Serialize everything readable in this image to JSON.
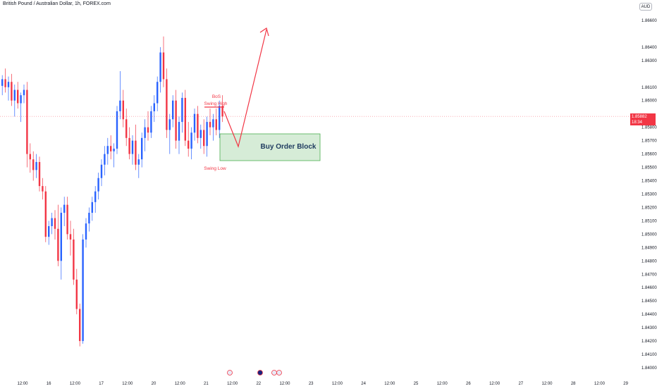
{
  "header": {
    "title": "British Pound / Australian Dollar, 1h, FOREX.com",
    "currency": "AUD"
  },
  "price_tag": {
    "price": "1.85882",
    "countdown": "18:34"
  },
  "annotations": {
    "bos": "BoS",
    "swing_high": "Swing High",
    "swing_low": "Swing Low",
    "order_block": "Buy Order Block"
  },
  "colors": {
    "up": "#2962ff",
    "down": "#f23645",
    "arrow": "#f23645",
    "order_block_fill": "#c8e6c9",
    "order_block_border": "#4caf50"
  },
  "chart_data": {
    "type": "candlestick",
    "y_ticks": [
      "1.86600",
      "1.86400",
      "1.86300",
      "1.86100",
      "1.86000",
      "1.85800",
      "1.85700",
      "1.85600",
      "1.85500",
      "1.85400",
      "1.85300",
      "1.85200",
      "1.85100",
      "1.85000",
      "1.84900",
      "1.84800",
      "1.84700",
      "1.84600",
      "1.84500",
      "1.84400",
      "1.84300",
      "1.84200",
      "1.84100",
      "1.84000"
    ],
    "x_ticks": [
      "12:00",
      "16",
      "12:00",
      "17",
      "12:00",
      "20",
      "12:00",
      "21",
      "12:00",
      "22",
      "12:00",
      "23",
      "12:00",
      "24",
      "12:00",
      "25",
      "12:00",
      "26",
      "12:00",
      "27",
      "12:00",
      "28",
      "12:00",
      "29"
    ],
    "ylim": [
      1.84,
      1.867
    ],
    "last_price": 1.85882,
    "candles": [
      [
        1.8611,
        1.8619,
        1.8604,
        1.8616
      ],
      [
        1.8616,
        1.8624,
        1.8606,
        1.861
      ],
      [
        1.861,
        1.8618,
        1.86,
        1.8614
      ],
      [
        1.8614,
        1.862,
        1.8596,
        1.86
      ],
      [
        1.86,
        1.8612,
        1.8588,
        1.8608
      ],
      [
        1.8608,
        1.8614,
        1.8594,
        1.8598
      ],
      [
        1.8598,
        1.8606,
        1.8584,
        1.8604
      ],
      [
        1.8604,
        1.8612,
        1.8598,
        1.8608
      ],
      [
        1.8608,
        1.8614,
        1.855,
        1.856
      ],
      [
        1.856,
        1.8568,
        1.8546,
        1.8556
      ],
      [
        1.8556,
        1.8562,
        1.854,
        1.8548
      ],
      [
        1.8548,
        1.856,
        1.8542,
        1.8554
      ],
      [
        1.8554,
        1.8558,
        1.8532,
        1.8536
      ],
      [
        1.8536,
        1.8542,
        1.8526,
        1.8532
      ],
      [
        1.8532,
        1.8536,
        1.8494,
        1.8498
      ],
      [
        1.8498,
        1.851,
        1.8492,
        1.8506
      ],
      [
        1.8506,
        1.8516,
        1.85,
        1.8512
      ],
      [
        1.8512,
        1.8518,
        1.8496,
        1.8504
      ],
      [
        1.8504,
        1.8522,
        1.8476,
        1.848
      ],
      [
        1.848,
        1.852,
        1.8466,
        1.8516
      ],
      [
        1.8516,
        1.8528,
        1.8506,
        1.8522
      ],
      [
        1.8522,
        1.8528,
        1.8496,
        1.85
      ],
      [
        1.85,
        1.851,
        1.8484,
        1.8496
      ],
      [
        1.8496,
        1.8504,
        1.8462,
        1.8466
      ],
      [
        1.8466,
        1.8474,
        1.844,
        1.8444
      ],
      [
        1.8444,
        1.8448,
        1.8416,
        1.842
      ],
      [
        1.842,
        1.85,
        1.8418,
        1.8496
      ],
      [
        1.8496,
        1.8512,
        1.849,
        1.8508
      ],
      [
        1.8508,
        1.852,
        1.8502,
        1.8516
      ],
      [
        1.8516,
        1.8528,
        1.851,
        1.8524
      ],
      [
        1.8524,
        1.8536,
        1.8516,
        1.8532
      ],
      [
        1.8532,
        1.8546,
        1.8526,
        1.8542
      ],
      [
        1.8542,
        1.8556,
        1.8536,
        1.8552
      ],
      [
        1.8552,
        1.8566,
        1.8544,
        1.856
      ],
      [
        1.856,
        1.8572,
        1.8552,
        1.8566
      ],
      [
        1.8566,
        1.8574,
        1.8556,
        1.8562
      ],
      [
        1.8562,
        1.8568,
        1.855,
        1.8564
      ],
      [
        1.8564,
        1.8596,
        1.856,
        1.8592
      ],
      [
        1.8592,
        1.8622,
        1.8586,
        1.86
      ],
      [
        1.86,
        1.8608,
        1.858,
        1.8586
      ],
      [
        1.8586,
        1.8594,
        1.8566,
        1.8572
      ],
      [
        1.8572,
        1.858,
        1.8556,
        1.856
      ],
      [
        1.856,
        1.8574,
        1.8552,
        1.857
      ],
      [
        1.857,
        1.8582,
        1.8548,
        1.8552
      ],
      [
        1.8552,
        1.856,
        1.8542,
        1.8556
      ],
      [
        1.8556,
        1.8576,
        1.855,
        1.8572
      ],
      [
        1.8572,
        1.8586,
        1.8562,
        1.858
      ],
      [
        1.858,
        1.8592,
        1.857,
        1.8576
      ],
      [
        1.8576,
        1.8596,
        1.8572,
        1.8592
      ],
      [
        1.8592,
        1.8604,
        1.8584,
        1.8598
      ],
      [
        1.8598,
        1.8618,
        1.8592,
        1.8614
      ],
      [
        1.8614,
        1.864,
        1.8606,
        1.8636
      ],
      [
        1.8636,
        1.8648,
        1.861,
        1.8616
      ],
      [
        1.8616,
        1.8624,
        1.8572,
        1.8578
      ],
      [
        1.8578,
        1.859,
        1.856,
        1.8586
      ],
      [
        1.8586,
        1.8604,
        1.858,
        1.86
      ],
      [
        1.86,
        1.8608,
        1.8564,
        1.857
      ],
      [
        1.857,
        1.8588,
        1.856,
        1.8584
      ],
      [
        1.8584,
        1.8606,
        1.8576,
        1.8602
      ],
      [
        1.8602,
        1.8608,
        1.8566,
        1.857
      ],
      [
        1.857,
        1.8584,
        1.8558,
        1.8564
      ],
      [
        1.8564,
        1.858,
        1.8556,
        1.8576
      ],
      [
        1.8576,
        1.8594,
        1.857,
        1.859
      ],
      [
        1.859,
        1.8596,
        1.8568,
        1.8572
      ],
      [
        1.8572,
        1.8582,
        1.8564,
        1.8578
      ],
      [
        1.8578,
        1.8586,
        1.856,
        1.8566
      ],
      [
        1.8566,
        1.8588,
        1.8558,
        1.8584
      ],
      [
        1.8584,
        1.8594,
        1.8574,
        1.858
      ],
      [
        1.858,
        1.859,
        1.857,
        1.8586
      ],
      [
        1.8586,
        1.8594,
        1.8574,
        1.8578
      ],
      [
        1.8578,
        1.86,
        1.8572,
        1.8596
      ],
      [
        1.8596,
        1.8604,
        1.8584,
        1.8588
      ]
    ]
  }
}
